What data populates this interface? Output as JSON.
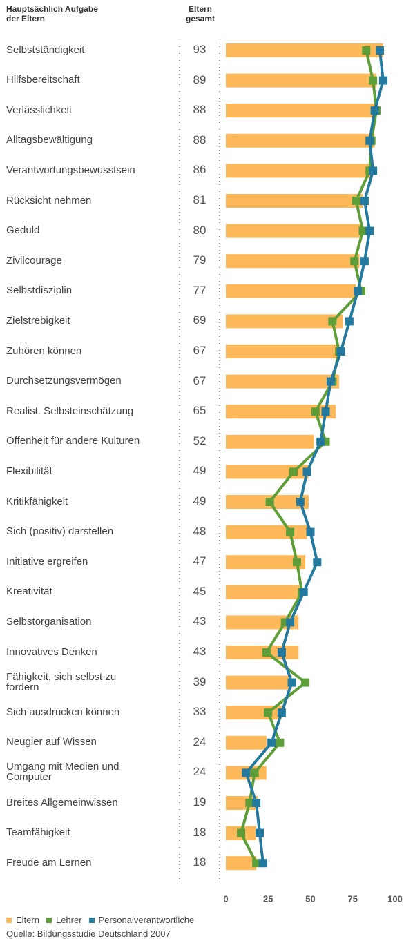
{
  "chart_data": {
    "type": "bar",
    "orientation": "horizontal",
    "category_header": "Hauptsächlich Aufgabe\nder Eltern",
    "value_header": "Eltern\ngesamt",
    "categories": [
      "Selbstständigkeit",
      "Hilfsbereitschaft",
      "Verlässlichkeit",
      "Alltagsbewältigung",
      "Verantwortungsbewusstsein",
      "Rücksicht nehmen",
      "Geduld",
      "Zivilcourage",
      "Selbstdisziplin",
      "Zielstrebigkeit",
      "Zuhören können",
      "Durchsetzungsvermögen",
      "Realist. Selbsteinschätzung",
      "Offenheit für andere Kulturen",
      "Flexibilität",
      "Kritikfähigkeit",
      "Sich (positiv) darstellen",
      "Initiative ergreifen",
      "Kreativität",
      "Selbstorganisation",
      "Innovatives Denken",
      "Fähigkeit, sich selbst zu\nfordern",
      "Sich ausdrücken können",
      "Neugier auf Wissen",
      "Umgang mit Medien und\nComputer",
      "Breites Allgemeinwissen",
      "Teamfähigkeit",
      "Freude am Lernen"
    ],
    "series": [
      {
        "name": "Eltern",
        "color": "#fdb85a",
        "mark": "bar",
        "values": [
          93,
          89,
          88,
          88,
          86,
          81,
          80,
          79,
          77,
          69,
          67,
          67,
          65,
          52,
          49,
          49,
          48,
          47,
          45,
          43,
          43,
          39,
          33,
          24,
          24,
          19,
          18,
          18
        ]
      },
      {
        "name": "Lehrer",
        "color": "#5e9e38",
        "mark": "line",
        "values": [
          83,
          87,
          89,
          86,
          85,
          77,
          81,
          76,
          80,
          63,
          67,
          63,
          53,
          59,
          40,
          26,
          38,
          42,
          45,
          35,
          24,
          47,
          25,
          32,
          17,
          14,
          9,
          18
        ]
      },
      {
        "name": "Personalverantwortliche",
        "color": "#237a9e",
        "mark": "line",
        "values": [
          91,
          93,
          88,
          85,
          87,
          82,
          85,
          82,
          78,
          73,
          68,
          62,
          59,
          56,
          48,
          44,
          50,
          54,
          46,
          38,
          33,
          39,
          33,
          27,
          12,
          18,
          20,
          22
        ]
      }
    ],
    "xlim": [
      0,
      100
    ],
    "xticks": [
      0,
      25,
      50,
      75,
      100
    ],
    "legend": "bottom",
    "source": "Quelle: Bildungsstudie Deutschland 2007"
  }
}
